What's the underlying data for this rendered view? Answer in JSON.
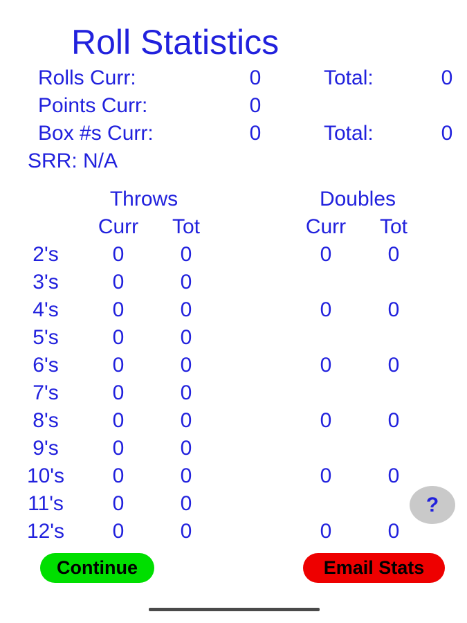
{
  "title": "Roll Statistics",
  "colors": {
    "text_blue": "#2121DD",
    "continue_green": "#00DF00",
    "email_red": "#EE0000",
    "help_gray": "#C9C9C9",
    "button_text": "#000000",
    "gesture_bar": "#4A4A4A",
    "background": "#FFFFFF"
  },
  "summary": {
    "rolls": {
      "label": "Rolls Curr:",
      "curr": "0",
      "total_label": "Total:",
      "total": "0"
    },
    "points": {
      "label": "Points Curr:",
      "curr": "0"
    },
    "box": {
      "label": "Box #s Curr:",
      "curr": "0",
      "total_label": "Total:",
      "total": "0"
    },
    "srr": {
      "label": "SRR: N/A"
    }
  },
  "table": {
    "throws_header": "Throws",
    "doubles_header": "Doubles",
    "curr_header": "Curr",
    "tot_header": "Tot",
    "rows": [
      {
        "label": "2's",
        "t_curr": "0",
        "t_tot": "0",
        "d_curr": "0",
        "d_tot": "0"
      },
      {
        "label": "3's",
        "t_curr": "0",
        "t_tot": "0",
        "d_curr": "",
        "d_tot": ""
      },
      {
        "label": "4's",
        "t_curr": "0",
        "t_tot": "0",
        "d_curr": "0",
        "d_tot": "0"
      },
      {
        "label": "5's",
        "t_curr": "0",
        "t_tot": "0",
        "d_curr": "",
        "d_tot": ""
      },
      {
        "label": "6's",
        "t_curr": "0",
        "t_tot": "0",
        "d_curr": "0",
        "d_tot": "0"
      },
      {
        "label": "7's",
        "t_curr": "0",
        "t_tot": "0",
        "d_curr": "",
        "d_tot": ""
      },
      {
        "label": "8's",
        "t_curr": "0",
        "t_tot": "0",
        "d_curr": "0",
        "d_tot": "0"
      },
      {
        "label": "9's",
        "t_curr": "0",
        "t_tot": "0",
        "d_curr": "",
        "d_tot": ""
      },
      {
        "label": "10's",
        "t_curr": "0",
        "t_tot": "0",
        "d_curr": "0",
        "d_tot": "0"
      },
      {
        "label": "11's",
        "t_curr": "0",
        "t_tot": "0",
        "d_curr": "",
        "d_tot": ""
      },
      {
        "label": "12's",
        "t_curr": "0",
        "t_tot": "0",
        "d_curr": "0",
        "d_tot": "0"
      }
    ]
  },
  "buttons": {
    "help": "?",
    "continue": "Continue",
    "email": "Email Stats"
  }
}
